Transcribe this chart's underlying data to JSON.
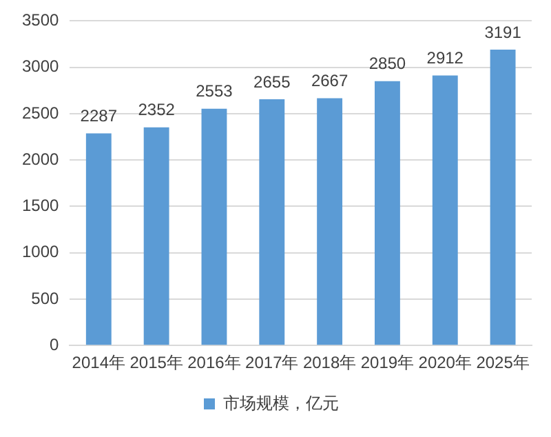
{
  "chart_data": {
    "type": "bar",
    "categories": [
      "2014年",
      "2015年",
      "2016年",
      "2017年",
      "2018年",
      "2019年",
      "2020年",
      "2025年"
    ],
    "series": [
      {
        "name": "市场规模，亿元",
        "color": "#5b9bd5",
        "values": [
          2287,
          2352,
          2553,
          2655,
          2667,
          2850,
          2912,
          3191
        ]
      }
    ],
    "ylim": [
      0,
      3500
    ],
    "yticks": [
      0,
      500,
      1000,
      1500,
      2000,
      2500,
      3000,
      3500
    ],
    "grid": "y",
    "legend": "bottom",
    "data_labels": true
  }
}
